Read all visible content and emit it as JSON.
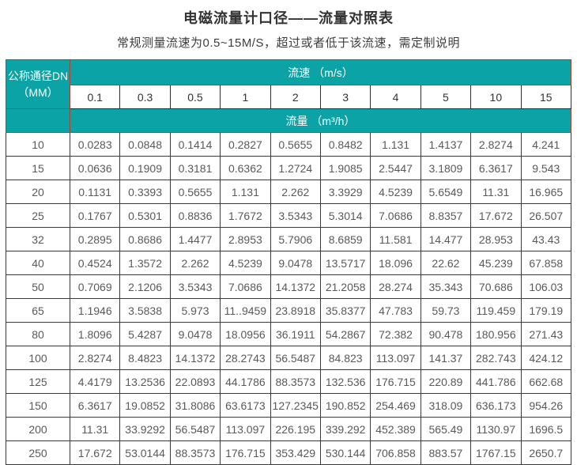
{
  "page": {
    "title": "电磁流量计口径——流量对照表",
    "subtitle": "常规测量流速为0.5~15M/S，超过或者低于该流速，需定制说明"
  },
  "table": {
    "corner_label_line1": "公称通径DN",
    "corner_label_line2": "（MM）",
    "velocity_header": "流速 （m/s）",
    "flow_header": "流量 （m³/h）",
    "velocity_columns": [
      "0.1",
      "0.3",
      "0.5",
      "1",
      "2",
      "3",
      "4",
      "5",
      "10",
      "15"
    ],
    "rows": [
      {
        "dn": "10",
        "values": [
          "0.0283",
          "0.0848",
          "0.1414",
          "0.2827",
          "0.5655",
          "0.8482",
          "1.131",
          "1.4137",
          "2.8274",
          "4.241"
        ]
      },
      {
        "dn": "15",
        "values": [
          "0.0636",
          "0.1909",
          "0.3181",
          "0.6362",
          "1.2724",
          "1.9085",
          "2.5447",
          "3.1809",
          "6.3617",
          "9.543"
        ]
      },
      {
        "dn": "20",
        "values": [
          "0.1131",
          "0.3393",
          "0.5655",
          "1.131",
          "2.262",
          "3.3929",
          "4.5239",
          "5.6549",
          "11.31",
          "16.965"
        ]
      },
      {
        "dn": "25",
        "values": [
          "0.1767",
          "0.5301",
          "0.8836",
          "1.7672",
          "3.5343",
          "5.3014",
          "7.0686",
          "8.8357",
          "17.672",
          "26.507"
        ]
      },
      {
        "dn": "32",
        "values": [
          "0.2895",
          "0.8686",
          "1.4477",
          "2.8953",
          "5.7906",
          "8.6859",
          "11.581",
          "14.477",
          "28.953",
          "43.43"
        ]
      },
      {
        "dn": "40",
        "values": [
          "0.4524",
          "1.3572",
          "2.262",
          "4.5239",
          "9.0478",
          "13.5717",
          "18.096",
          "22.62",
          "45.239",
          "67.858"
        ]
      },
      {
        "dn": "50",
        "values": [
          "0.7069",
          "2.1206",
          "3.5343",
          "7.0686",
          "14.1372",
          "21.2058",
          "28.274",
          "35.343",
          "70.686",
          "106.03"
        ]
      },
      {
        "dn": "65",
        "values": [
          "1.1946",
          "3.5838",
          "5.973",
          "11..9459",
          "23.8918",
          "35.8377",
          "47.783",
          "59.73",
          "119.459",
          "179.19"
        ]
      },
      {
        "dn": "80",
        "values": [
          "1.8096",
          "5.4287",
          "9.0478",
          "18.0956",
          "36.1911",
          "54.2867",
          "72.382",
          "90.478",
          "180.956",
          "271.43"
        ]
      },
      {
        "dn": "100",
        "values": [
          "2.8274",
          "8.4823",
          "14.1372",
          "28.2743",
          "56.5487",
          "84.823",
          "113.097",
          "141.37",
          "282.743",
          "424.12"
        ]
      },
      {
        "dn": "125",
        "values": [
          "4.4179",
          "13.2536",
          "22.0893",
          "44.1786",
          "88.3573",
          "132.536",
          "176.715",
          "220.89",
          "441.786",
          "662.68"
        ]
      },
      {
        "dn": "150",
        "values": [
          "6.3617",
          "19.0852",
          "31.8086",
          "63.6173",
          "127.2345",
          "190.852",
          "254.469",
          "318.09",
          "636.173",
          "954.26"
        ]
      },
      {
        "dn": "200",
        "values": [
          "11.31",
          "33.9292",
          "56.5487",
          "113.097",
          "226.195",
          "339.292",
          "452.389",
          "565.49",
          "1130.97",
          "1696.5"
        ]
      },
      {
        "dn": "250",
        "values": [
          "17.672",
          "53.0144",
          "88.3573",
          "176.715",
          "353.429",
          "530.144",
          "706.858",
          "883.57",
          "1767.15",
          "2650.7"
        ]
      }
    ]
  },
  "colors": {
    "header_teal": "#0ba3a6",
    "header_border_red": "#a8432f",
    "data_border": "#3a3a3a",
    "data_text": "#595959",
    "title_text": "#333333"
  }
}
